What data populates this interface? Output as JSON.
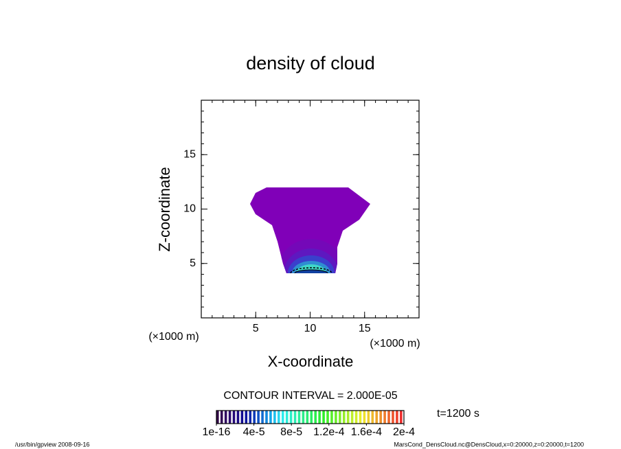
{
  "chart_data": {
    "type": "contour",
    "title": "density of cloud",
    "xlabel": "X-coordinate",
    "ylabel": "Z-coordinate",
    "x_unit": "(×1000 m)",
    "y_unit": "(×1000 m)",
    "xlim": [
      0,
      20
    ],
    "ylim": [
      0,
      20
    ],
    "xticks": [
      5,
      10,
      15
    ],
    "yticks": [
      5,
      10,
      15
    ],
    "contour_interval": "CONTOUR INTERVAL = 2.000E-05",
    "colorbar_ticks": [
      {
        "value": 1e-16,
        "label": "1e-16"
      },
      {
        "value": 4e-05,
        "label": "4e-5"
      },
      {
        "value": 8e-05,
        "label": "8e-5"
      },
      {
        "value": 0.00012,
        "label": "1.2e-4"
      },
      {
        "value": 0.00016,
        "label": "1.6e-4"
      },
      {
        "value": 0.0002,
        "label": "2e-4"
      }
    ],
    "time_label": "t=1200 s",
    "footer_left": "/usr/bin/gpview  2008-09-16",
    "footer_right": "MarsCond_DensCloud.nc@DensCloud,x=0:20000,z=0:20000,t=1200"
  }
}
